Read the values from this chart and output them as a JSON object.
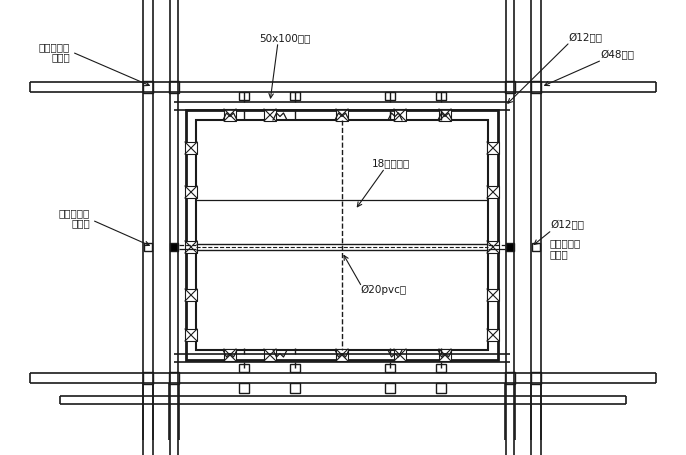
{
  "bg_color": "#ffffff",
  "line_color": "#1a1a1a",
  "figure_width": 6.86,
  "figure_height": 4.55,
  "labels": {
    "top_left_1": "螺母、工具",
    "top_left_2": "式卡具",
    "top_center": "50x100木方",
    "top_right_1": "Ø12拉杆",
    "top_right_2": "Ø48钢管",
    "mid_left_1": "螺母、工具",
    "mid_left_2": "式卡具",
    "right_mid_1": "Ø12拉杆",
    "right_mid_2": "螺母、工具",
    "right_mid_3": "式卡具",
    "inner_right": "18厚胶合板",
    "inner_center": "Ø20pvc管"
  }
}
